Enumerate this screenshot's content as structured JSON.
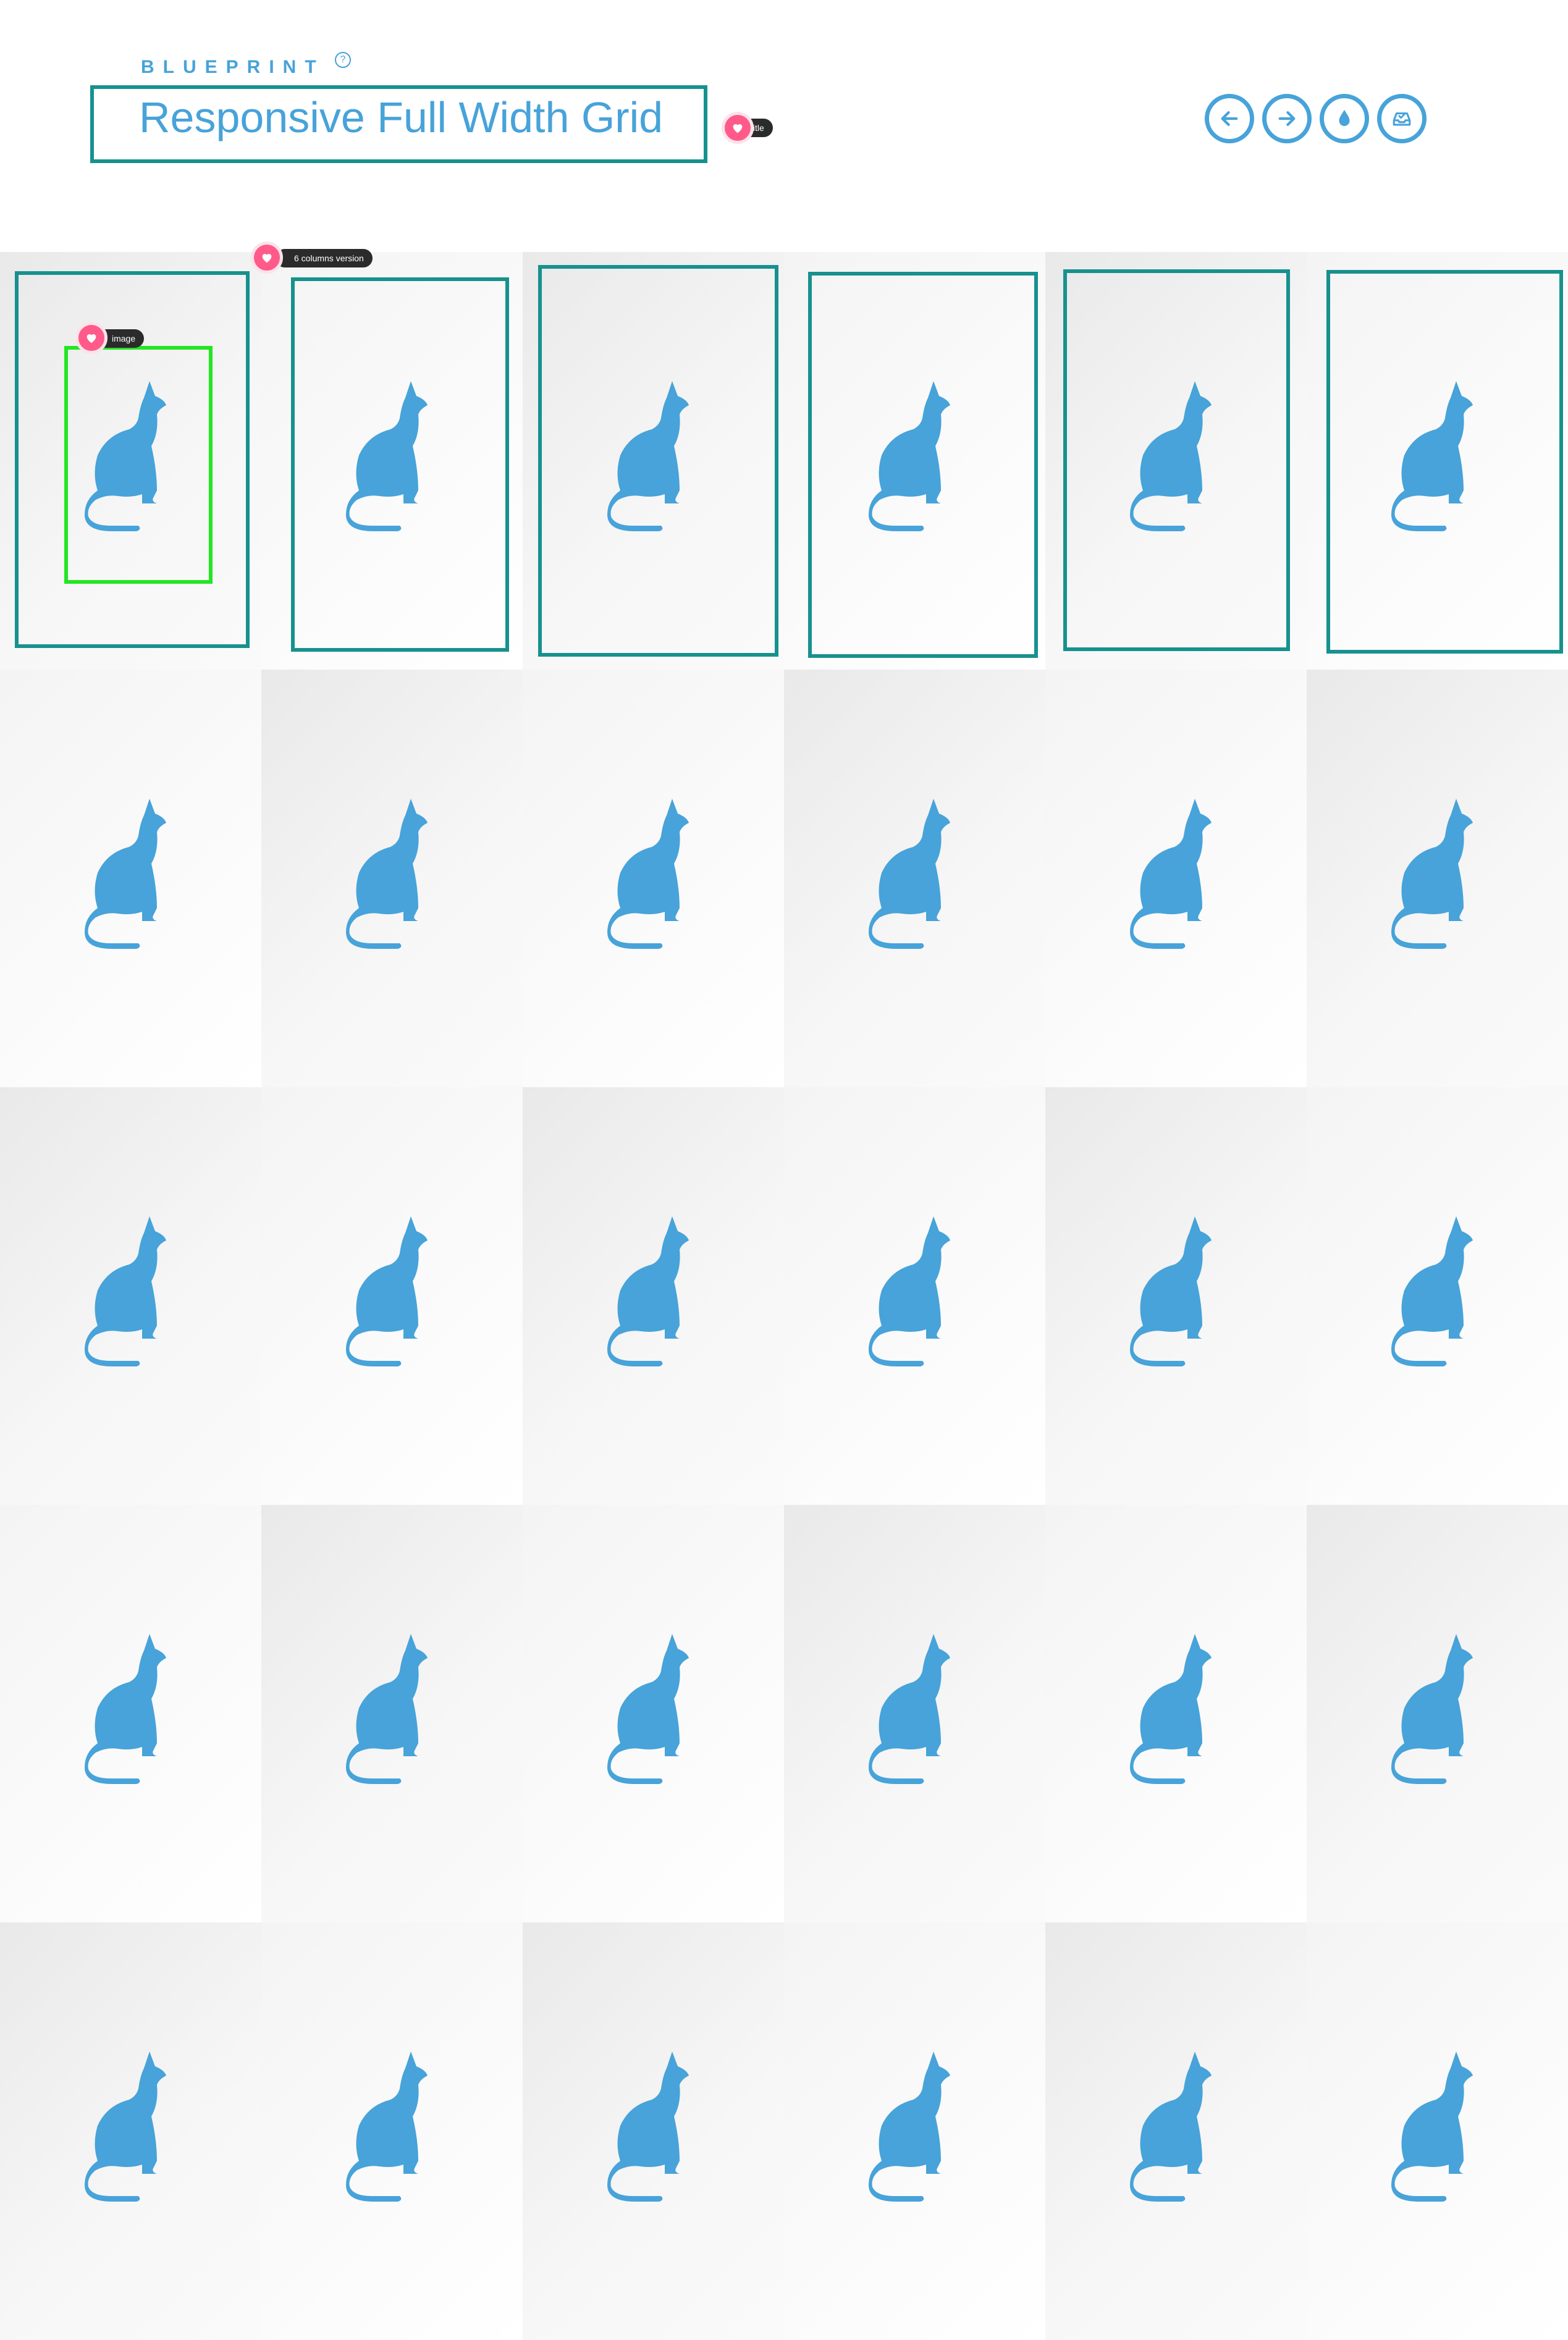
{
  "header": {
    "brand": "BLUEPRINT",
    "brand_mark": "?",
    "title": "Responsive Full Width Grid"
  },
  "nav": [
    {
      "name": "previous-button",
      "icon": "arrow-left-icon"
    },
    {
      "name": "next-button",
      "icon": "arrow-right-icon"
    },
    {
      "name": "color-button",
      "icon": "drop-icon"
    },
    {
      "name": "download-button",
      "icon": "inbox-icon"
    }
  ],
  "tags": {
    "title": "title",
    "version": "6 columns  version",
    "image": "image"
  },
  "grid": {
    "columns": 6,
    "rows": 5,
    "item_icon": "cat-icon"
  },
  "colors": {
    "accent": "#47a3d9",
    "outline": "#17918e",
    "highlight": "#23e623",
    "tag_dot": "#ff5a8a"
  }
}
